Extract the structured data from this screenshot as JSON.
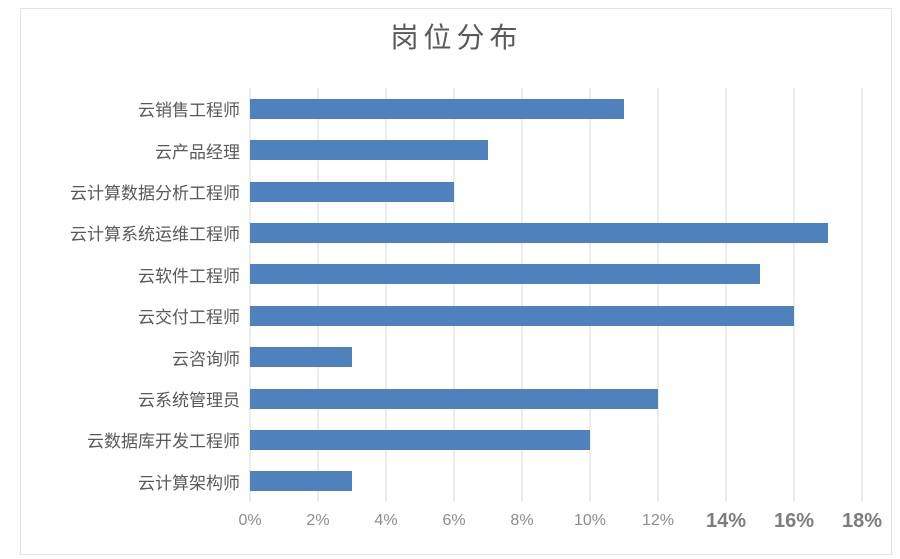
{
  "title": "岗位分布",
  "chart_data": {
    "type": "bar",
    "orientation": "horizontal",
    "title": "岗位分布",
    "xlabel": "",
    "ylabel": "",
    "categories": [
      "云销售工程师",
      "云产品经理",
      "云计算数据分析工程师",
      "云计算系统运维工程师",
      "云软件工程师",
      "云交付工程师",
      "云咨询师",
      "云系统管理员",
      "云数据库开发工程师",
      "云计算架构师"
    ],
    "values": [
      11,
      7,
      6,
      17,
      15,
      16,
      3,
      12,
      10,
      3
    ],
    "unit": "%",
    "xlim": [
      0,
      18
    ],
    "x_tick_step": 2,
    "x_ticks": [
      "0%",
      "2%",
      "4%",
      "6%",
      "8%",
      "10%",
      "12%",
      "14%",
      "16%",
      "18%"
    ],
    "grid": true,
    "legend": "none",
    "bar_color": "#4f81bd",
    "gridline_color": "#d9d9d9",
    "title_color": "#595959",
    "label_color": "#595959",
    "tick_color": "#8c8c8c"
  }
}
